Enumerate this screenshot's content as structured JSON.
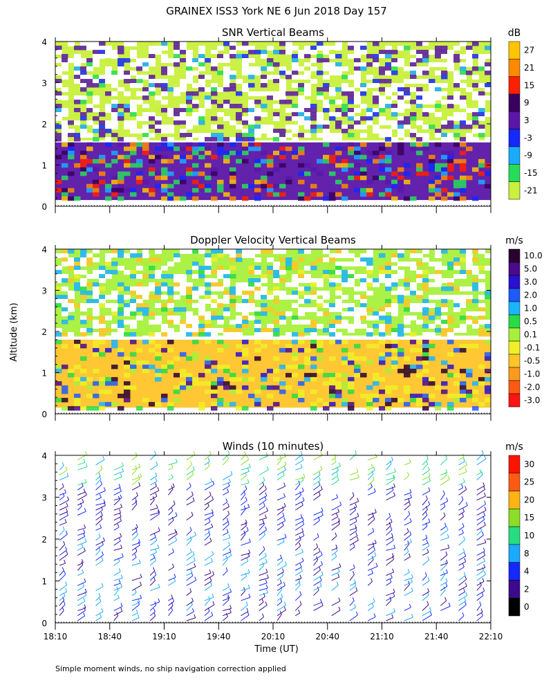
{
  "title": "GRAINEX ISS3 York NE   6 Jun 2018 Day 157",
  "footnote": "Simple moment winds, no ship navigation correction applied",
  "ylabel": "Altitude (km)",
  "xlabel": "Time (UT)",
  "x_ticks": [
    "18:10",
    "18:40",
    "19:10",
    "19:40",
    "20:10",
    "20:40",
    "21:10",
    "21:40",
    "22:10"
  ],
  "y_ticks": [
    "0",
    "1",
    "2",
    "3",
    "4"
  ],
  "chart_data": [
    {
      "type": "heatmap",
      "title": "SNR Vertical Beams",
      "x_range": [
        "18:10",
        "22:10"
      ],
      "ylim": [
        0,
        4
      ],
      "colorbar": {
        "unit": "dB",
        "labels": [
          "27",
          "21",
          "15",
          "9",
          "3",
          "-3",
          "-9",
          "-15",
          "-21"
        ],
        "colors": [
          "#ffc400",
          "#ff8a00",
          "#ff2000",
          "#3a0060",
          "#5a16a8",
          "#1428ff",
          "#1aaaff",
          "#28dc5a",
          "#c8f03c"
        ]
      },
      "layers": [
        {
          "label": "-21",
          "altitude_km": [
            1.6,
            4.0
          ]
        },
        {
          "label": "3",
          "altitude_km": [
            0.15,
            1.55
          ]
        }
      ]
    },
    {
      "type": "heatmap",
      "title": "Doppler Velocity Vertical Beams",
      "x_range": [
        "18:10",
        "22:10"
      ],
      "ylim": [
        0,
        4
      ],
      "colorbar": {
        "unit": "m/s",
        "labels": [
          "10.0",
          "5.0",
          "3.0",
          "2.0",
          "1.0",
          "0.5",
          "0.1",
          "-0.1",
          "-0.5",
          "-1.0",
          "-2.0",
          "-3.0"
        ],
        "colors": [
          "#2a0030",
          "#4a0a8a",
          "#2a10d0",
          "#1e5aff",
          "#1ab4ff",
          "#28dc46",
          "#a8f03c",
          "#f0f028",
          "#ffc428",
          "#ff9a1e",
          "#ff5a14",
          "#ff1414"
        ]
      },
      "layers": [
        {
          "label": "0.1",
          "altitude_km": [
            1.9,
            4.0
          ]
        },
        {
          "label": "-0.5",
          "altitude_km": [
            0.15,
            1.8
          ]
        }
      ]
    },
    {
      "type": "scatter",
      "title": "Winds (10 minutes)",
      "x_range": [
        "18:10",
        "22:10"
      ],
      "ylim": [
        0,
        4
      ],
      "colorbar": {
        "unit": "m/s",
        "labels": [
          "30",
          "25",
          "20",
          "15",
          "10",
          "8",
          "4",
          "2",
          "0"
        ],
        "colors": [
          "#ff1400",
          "#ff5a14",
          "#ffb414",
          "#8cdc28",
          "#28dc82",
          "#1aaaff",
          "#1428ff",
          "#3c0a8c",
          "#000000"
        ]
      },
      "barb_times": [
        "18:10",
        "18:20",
        "18:30",
        "18:40",
        "18:50",
        "19:00",
        "19:10",
        "19:20",
        "19:30",
        "19:40",
        "19:50",
        "20:00",
        "20:10",
        "20:20",
        "20:30",
        "20:40",
        "20:50",
        "21:00",
        "21:10",
        "21:20",
        "21:30",
        "21:40",
        "21:50",
        "22:00"
      ]
    }
  ]
}
